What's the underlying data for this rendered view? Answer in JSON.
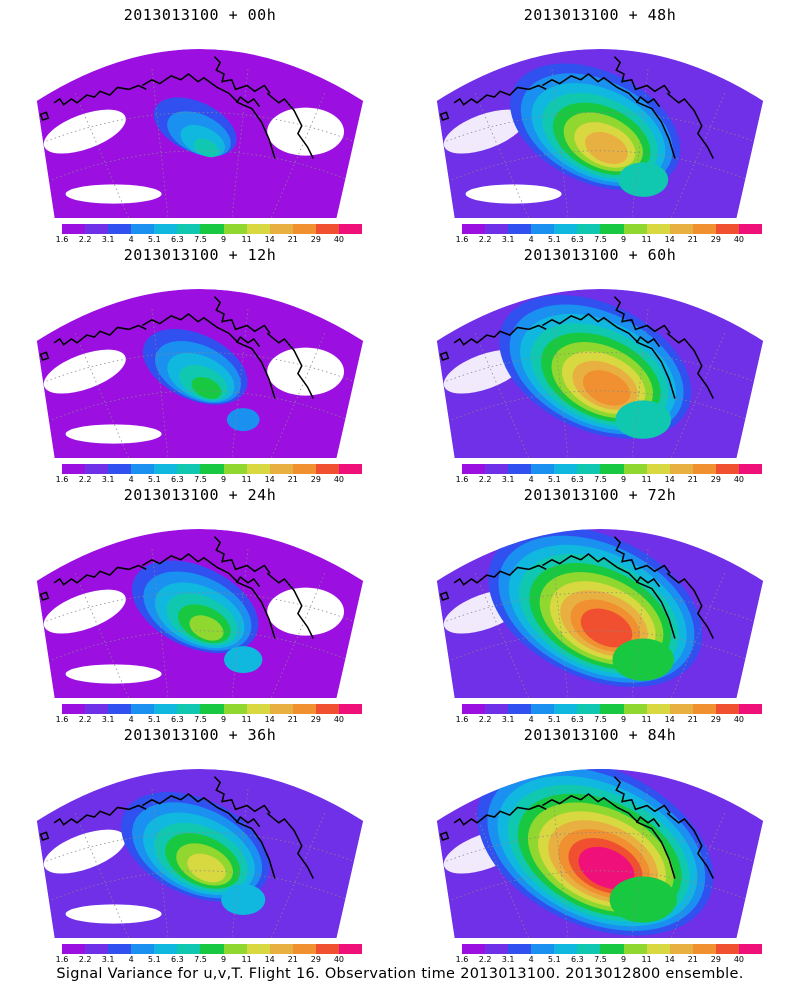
{
  "panels": [
    {
      "title": "2013013100 + 00h",
      "intensity": 0
    },
    {
      "title": "2013013100 + 48h",
      "intensity": 4
    },
    {
      "title": "2013013100 + 12h",
      "intensity": 1
    },
    {
      "title": "2013013100 + 60h",
      "intensity": 5
    },
    {
      "title": "2013013100 + 24h",
      "intensity": 2
    },
    {
      "title": "2013013100 + 72h",
      "intensity": 6
    },
    {
      "title": "2013013100 + 36h",
      "intensity": 3
    },
    {
      "title": "2013013100 + 84h",
      "intensity": 7
    }
  ],
  "colorbar": {
    "labels": [
      "1.6",
      "2.2",
      "3.1",
      "4",
      "5.1",
      "6.3",
      "7.5",
      "9",
      "11",
      "14",
      "21",
      "29",
      "40"
    ],
    "colors": [
      "#9b10e0",
      "#7030e8",
      "#3050f0",
      "#1a90f0",
      "#10b8e0",
      "#10c8b0",
      "#18c840",
      "#90d830",
      "#d8d840",
      "#e8b040",
      "#f09030",
      "#f05030",
      "#f0107a"
    ]
  },
  "caption": "Signal Variance for u,v,T. Flight 16. Observation time 2013013100. 2013012800 ensemble."
}
